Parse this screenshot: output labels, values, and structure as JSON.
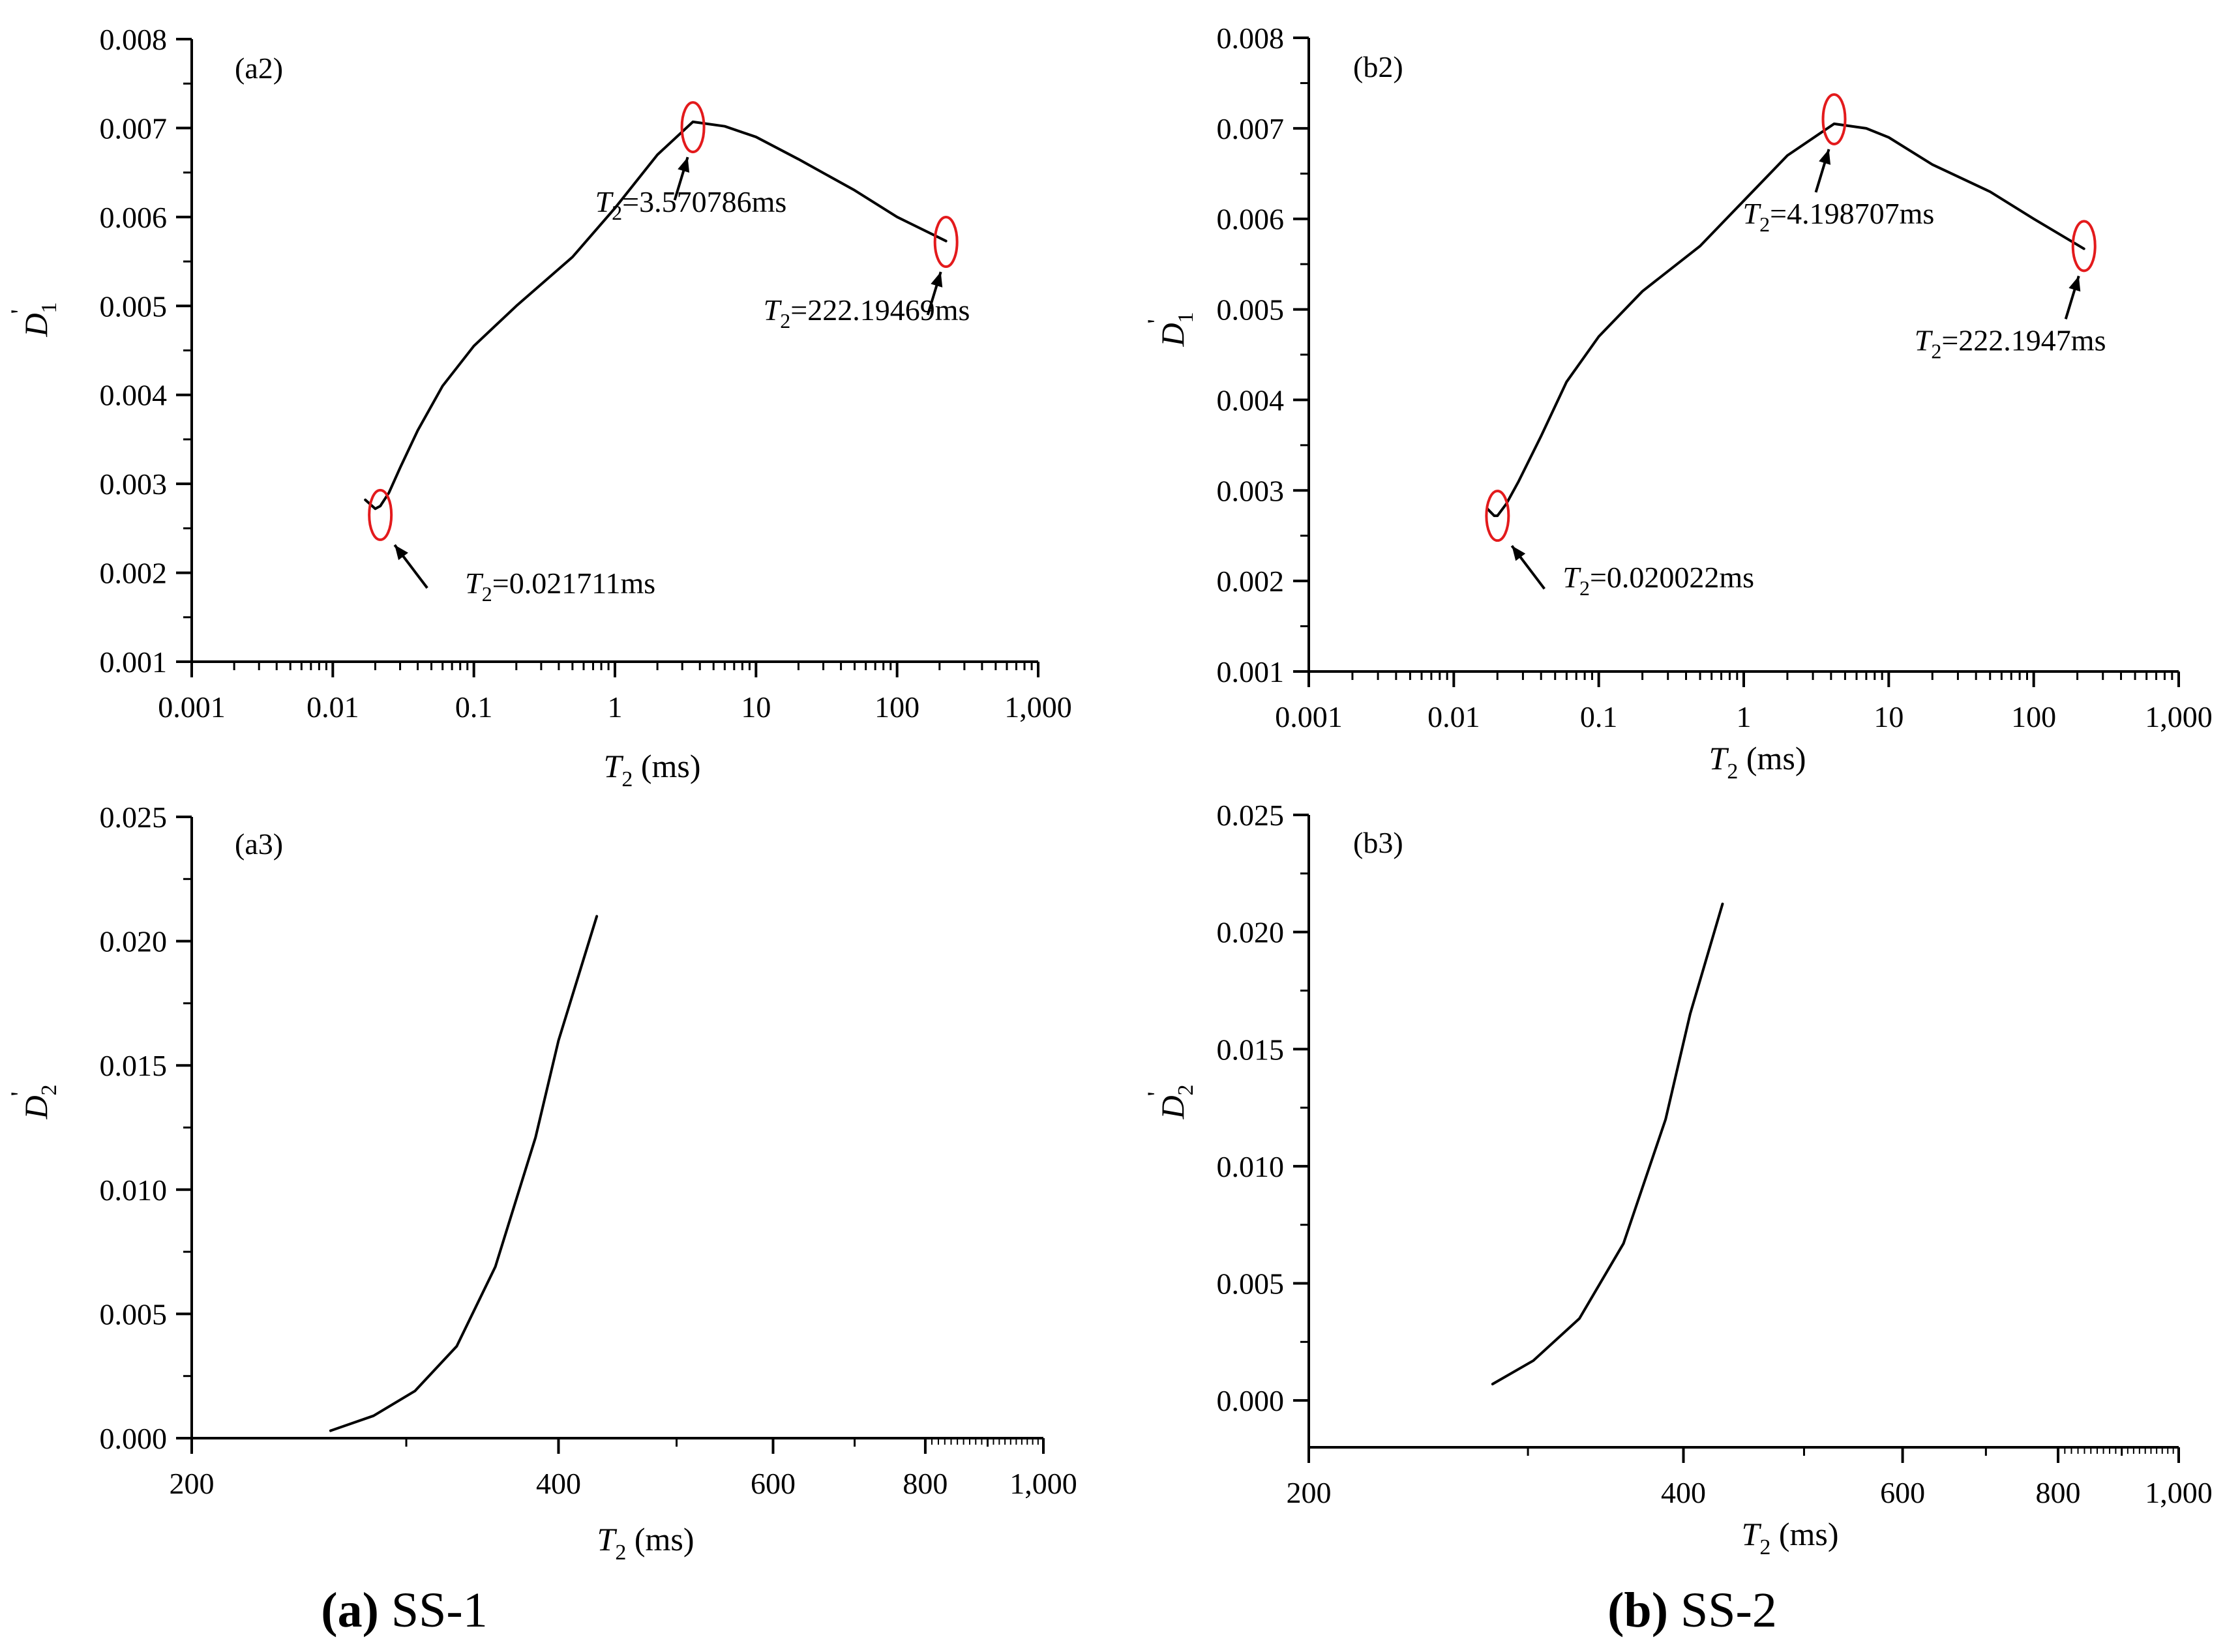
{
  "figure": {
    "captions": [
      {
        "letter": "(a)",
        "label": "SS-1"
      },
      {
        "letter": "(b)",
        "label": "SS-2"
      }
    ]
  },
  "colors": {
    "line": "#000000",
    "highlight": "#e31a1c",
    "axis": "#000000"
  },
  "chart_data": [
    {
      "id": "a2",
      "type": "line",
      "panel_label": "(a2)",
      "xscale": "log",
      "xlim": [
        0.001,
        1000
      ],
      "xticks": [
        0.001,
        0.01,
        0.1,
        1,
        10,
        100,
        1000
      ],
      "xtick_labels": [
        "0.001",
        "0.01",
        "0.1",
        "1",
        "10",
        "100",
        "1,000"
      ],
      "xlabel": {
        "var": "T",
        "sub": "2",
        "unit": " (ms)"
      },
      "ylabel": {
        "var": "D",
        "sub": "1",
        "prime": "'"
      },
      "ylim": [
        0.001,
        0.008
      ],
      "yticks": [
        0.001,
        0.002,
        0.003,
        0.004,
        0.005,
        0.006,
        0.007,
        0.008
      ],
      "ytick_labels": [
        "0.001",
        "0.002",
        "0.003",
        "0.004",
        "0.005",
        "0.006",
        "0.007",
        "0.008"
      ],
      "series": [
        {
          "name": "D1'",
          "x": [
            0.017,
            0.02,
            0.0217,
            0.025,
            0.03,
            0.04,
            0.06,
            0.1,
            0.2,
            0.5,
            1,
            2,
            3.57,
            6,
            10,
            20,
            50,
            100,
            222.19
          ],
          "y": [
            0.00282,
            0.00272,
            0.00275,
            0.0029,
            0.00318,
            0.0036,
            0.0041,
            0.00455,
            0.005,
            0.00555,
            0.0061,
            0.0067,
            0.00707,
            0.00702,
            0.0069,
            0.00665,
            0.0063,
            0.006,
            0.00573
          ]
        }
      ],
      "annotations": [
        {
          "x": 0.021711,
          "y": 0.00265,
          "prefix": "=",
          "value": "0.021711",
          "unit": "ms",
          "var": "T",
          "sub": "2"
        },
        {
          "x": 3.570786,
          "y": 0.00701,
          "prefix": "=",
          "value": "3.570786",
          "unit": "ms",
          "var": "T",
          "sub": "2"
        },
        {
          "x": 222.19469,
          "y": 0.00572,
          "prefix": "=",
          "value": "222.19469",
          "unit": "ms",
          "var": "T",
          "sub": "2"
        }
      ]
    },
    {
      "id": "b2",
      "type": "line",
      "panel_label": "(b2)",
      "xscale": "log",
      "xlim": [
        0.001,
        1000
      ],
      "xticks": [
        0.001,
        0.01,
        0.1,
        1,
        10,
        100,
        1000
      ],
      "xtick_labels": [
        "0.001",
        "0.01",
        "0.1",
        "1",
        "10",
        "100",
        "1,000"
      ],
      "xlabel": {
        "var": "T",
        "sub": "2",
        "unit": " (ms)"
      },
      "ylabel": {
        "var": "D",
        "sub": "1",
        "prime": "'"
      },
      "ylim": [
        0.001,
        0.008
      ],
      "yticks": [
        0.001,
        0.002,
        0.003,
        0.004,
        0.005,
        0.006,
        0.007,
        0.008
      ],
      "ytick_labels": [
        "0.001",
        "0.002",
        "0.003",
        "0.004",
        "0.005",
        "0.006",
        "0.007",
        "0.008"
      ],
      "series": [
        {
          "name": "D1'",
          "x": [
            0.017,
            0.019,
            0.02,
            0.023,
            0.028,
            0.04,
            0.06,
            0.1,
            0.2,
            0.5,
            1,
            2,
            4.2,
            7,
            10,
            20,
            50,
            100,
            222.19
          ],
          "y": [
            0.0028,
            0.00272,
            0.00272,
            0.00285,
            0.0031,
            0.0036,
            0.0042,
            0.0047,
            0.0052,
            0.0057,
            0.0062,
            0.0067,
            0.00705,
            0.007,
            0.0069,
            0.0066,
            0.0063,
            0.006,
            0.00567
          ]
        }
      ],
      "annotations": [
        {
          "x": 0.020022,
          "y": 0.00272,
          "prefix": "=",
          "value": "0.020022",
          "unit": "ms",
          "var": "T",
          "sub": "2"
        },
        {
          "x": 4.198707,
          "y": 0.0071,
          "prefix": "=",
          "value": "4.198707",
          "unit": "ms",
          "var": "T",
          "sub": "2"
        },
        {
          "x": 222.1947,
          "y": 0.0057,
          "prefix": "=",
          "value": "222.1947",
          "unit": "ms",
          "var": "T",
          "sub": "2"
        }
      ]
    },
    {
      "id": "a3",
      "type": "line",
      "panel_label": "(a3)",
      "xscale": "log",
      "xlim": [
        200,
        1000
      ],
      "xticks": [
        200,
        400,
        600,
        800,
        1000
      ],
      "xtick_labels": [
        "200",
        "400",
        "600",
        "800",
        "1,000"
      ],
      "xlabel": {
        "var": "T",
        "sub": "2",
        "unit": " (ms)"
      },
      "ylabel": {
        "var": "D",
        "sub": "2",
        "prime": "'"
      },
      "ylim": [
        0,
        0.025
      ],
      "yticks": [
        0,
        0.005,
        0.01,
        0.015,
        0.02,
        0.025
      ],
      "ytick_labels": [
        "0.000",
        "0.005",
        "0.010",
        "0.015",
        "0.020",
        "0.025"
      ],
      "series": [
        {
          "name": "D2'",
          "x": [
            260,
            282,
            305,
            330,
            355,
            383,
            400,
            430
          ],
          "y": [
            0.0003,
            0.0009,
            0.0019,
            0.0037,
            0.0069,
            0.0121,
            0.016,
            0.021
          ]
        }
      ],
      "annotations": []
    },
    {
      "id": "b3",
      "type": "line",
      "panel_label": "(b3)",
      "xscale": "log",
      "xlim": [
        200,
        1000
      ],
      "xticks": [
        200,
        400,
        600,
        800,
        1000
      ],
      "xtick_labels": [
        "200",
        "400",
        "600",
        "800",
        "1,000"
      ],
      "xlabel": {
        "var": "T",
        "sub": "2",
        "unit": " (ms)"
      },
      "ylabel": {
        "var": "D",
        "sub": "2",
        "prime": "'"
      },
      "ylim": [
        -0.002,
        0.025
      ],
      "yticks": [
        0,
        0.005,
        0.01,
        0.015,
        0.02,
        0.025
      ],
      "ytick_labels": [
        "0.000",
        "0.005",
        "0.010",
        "0.015",
        "0.020",
        "0.025"
      ],
      "series": [
        {
          "name": "D2'",
          "x": [
            281,
            303,
            330,
            358,
            387,
            405,
            430
          ],
          "y": [
            0.0007,
            0.0017,
            0.0035,
            0.0067,
            0.012,
            0.0165,
            0.0212
          ]
        }
      ],
      "annotations": []
    }
  ]
}
